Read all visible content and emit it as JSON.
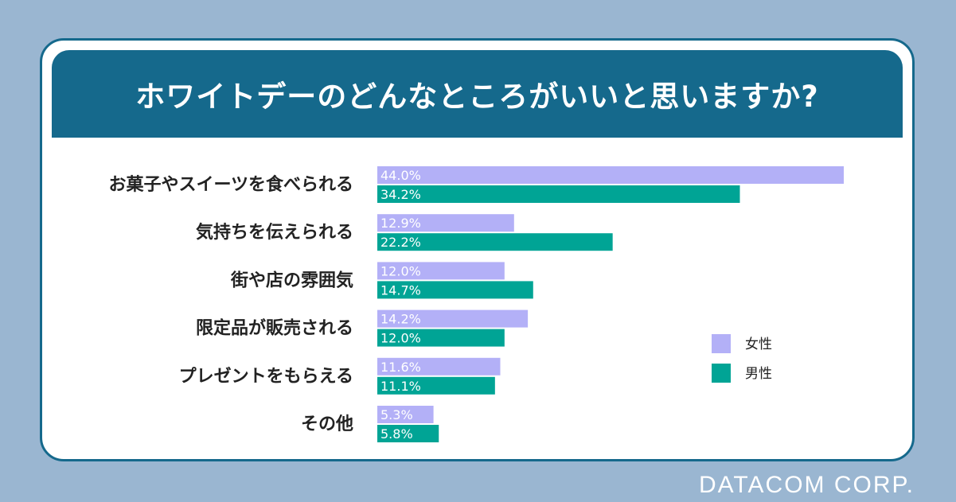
{
  "colors": {
    "background": "#9ab6d1",
    "header": "#15698c",
    "female": "#b3b0f7",
    "male": "#00a495"
  },
  "footer": "DATACOM CORP.",
  "chart_data": {
    "type": "bar",
    "orientation": "horizontal",
    "title": "ホワイトデーのどんなところがいいと思いますか?",
    "categories": [
      "お菓子やスイーツを食べられる",
      "気持ちを伝えられる",
      "街や店の雰囲気",
      "限定品が販売される",
      "プレゼントをもらえる",
      "その他"
    ],
    "series": [
      {
        "name": "女性",
        "color": "#b3b0f7",
        "values": [
          44.0,
          12.9,
          12.0,
          14.2,
          11.6,
          5.3
        ]
      },
      {
        "name": "男性",
        "color": "#00a495",
        "values": [
          34.2,
          22.2,
          14.7,
          12.0,
          11.1,
          5.8
        ]
      }
    ],
    "value_suffix": "%",
    "xlim": [
      0,
      44.0
    ],
    "legend_position": "right",
    "grid": false
  }
}
